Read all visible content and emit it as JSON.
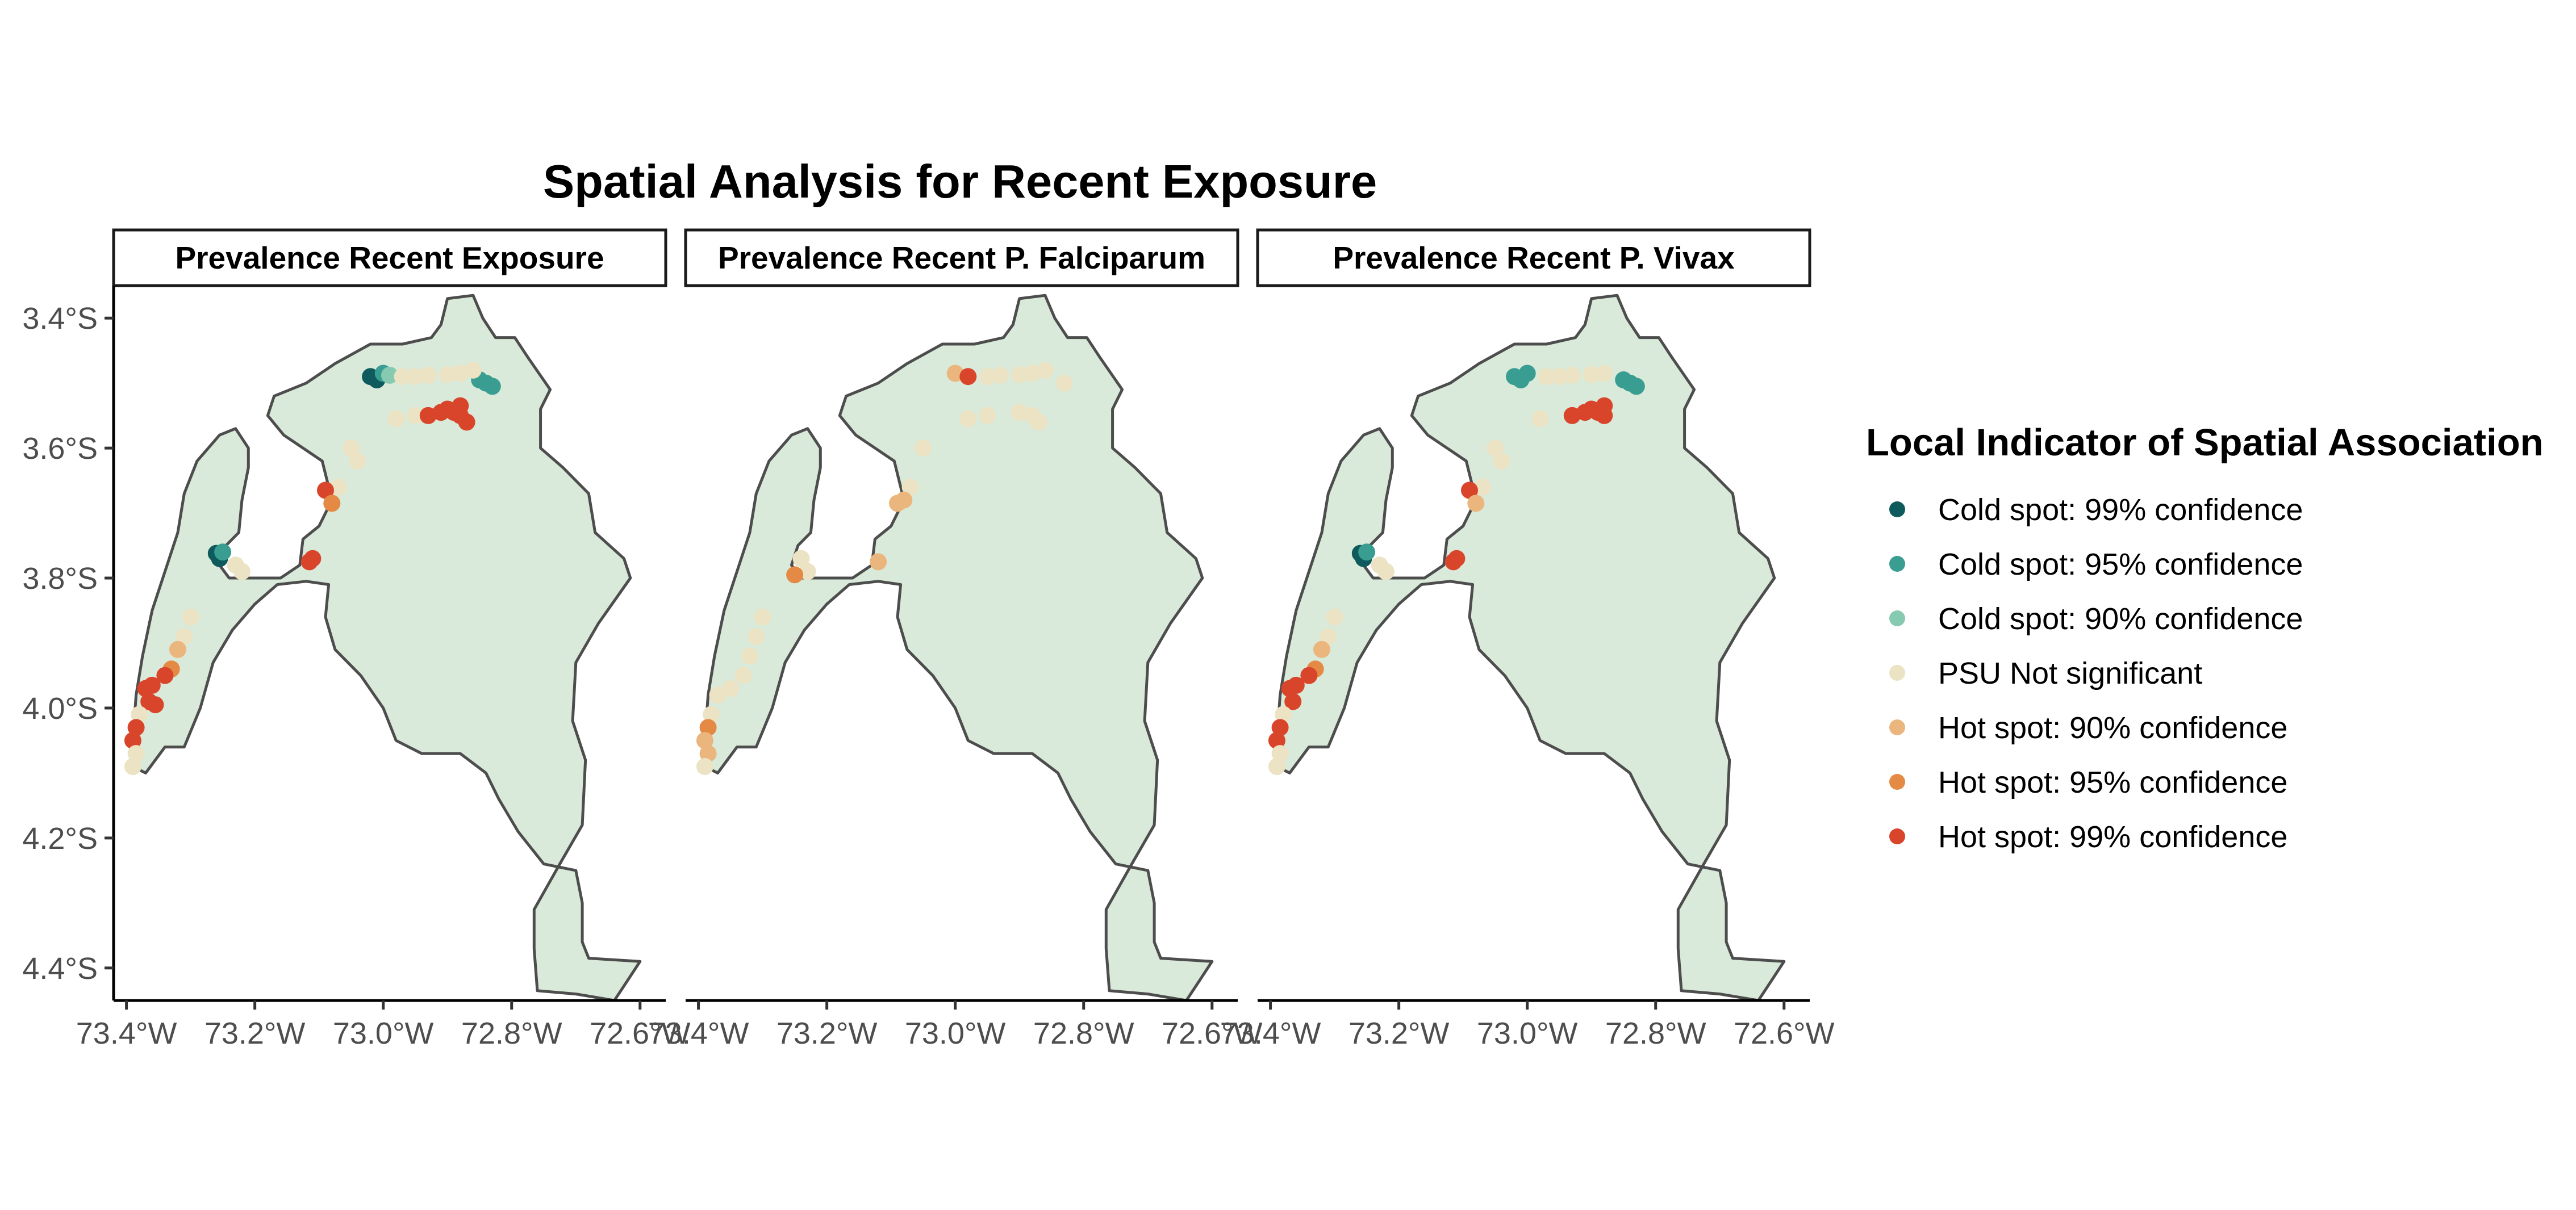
{
  "title": "Spatial Analysis for Recent Exposure",
  "colors": {
    "land": "#d9eada",
    "border": "#4d4d4d",
    "axis": "#000000"
  },
  "panels": [
    {
      "title": "Prevalence Recent Exposure"
    },
    {
      "title": "Prevalence Recent P. Falciparum"
    },
    {
      "title": "Prevalence Recent P. Vivax"
    }
  ],
  "axes": {
    "y_ticks": [
      "3.4°S",
      "3.6°S",
      "3.8°S",
      "4.0°S",
      "4.2°S",
      "4.4°S"
    ],
    "x_ticks": [
      "73.4°W",
      "73.2°W",
      "73.0°W",
      "72.8°W",
      "72.6°W"
    ],
    "x_ticks_clipped": [
      "73.4°W",
      "73.2°W",
      "73.0°W",
      "72.8°W",
      "72.6°W"
    ]
  },
  "legend": {
    "title": "Local Indicator of Spatial Association",
    "items": [
      {
        "label": "Cold spot: 99% confidence",
        "color": "#0e5a5c"
      },
      {
        "label": "Cold spot: 95% confidence",
        "color": "#3a9d92"
      },
      {
        "label": "Cold spot: 90% confidence",
        "color": "#86cbb1"
      },
      {
        "label": "PSU Not significant",
        "color": "#ebe3c4"
      },
      {
        "label": "Hot spot: 90% confidence",
        "color": "#ebb67e"
      },
      {
        "label": "Hot spot: 95% confidence",
        "color": "#e48a44"
      },
      {
        "label": "Hot spot: 99% confidence",
        "color": "#d9452b"
      }
    ]
  },
  "map_data": {
    "lon_range": [
      -73.42,
      -72.56
    ],
    "lat_range": [
      -4.45,
      -3.35
    ],
    "points_by_panel": [
      [
        [
          -73.02,
          -3.49,
          0
        ],
        [
          -73.01,
          -3.495,
          0
        ],
        [
          -73.0,
          -3.485,
          1
        ],
        [
          -72.99,
          -3.488,
          2
        ],
        [
          -72.84,
          -3.5,
          1
        ],
        [
          -72.83,
          -3.505,
          1
        ],
        [
          -72.85,
          -3.495,
          1
        ],
        [
          -72.97,
          -3.49,
          3
        ],
        [
          -72.95,
          -3.49,
          3
        ],
        [
          -72.93,
          -3.488,
          3
        ],
        [
          -72.9,
          -3.487,
          3
        ],
        [
          -72.88,
          -3.485,
          3
        ],
        [
          -72.86,
          -3.48,
          3
        ],
        [
          -72.98,
          -3.555,
          3
        ],
        [
          -72.95,
          -3.55,
          3
        ],
        [
          -73.04,
          -3.62,
          3
        ],
        [
          -73.07,
          -3.66,
          3
        ],
        [
          -73.05,
          -3.6,
          3
        ],
        [
          -72.93,
          -3.55,
          6
        ],
        [
          -72.91,
          -3.545,
          6
        ],
        [
          -72.9,
          -3.54,
          6
        ],
        [
          -72.89,
          -3.545,
          6
        ],
        [
          -72.88,
          -3.55,
          6
        ],
        [
          -72.87,
          -3.56,
          6
        ],
        [
          -72.88,
          -3.535,
          6
        ],
        [
          -73.09,
          -3.665,
          6
        ],
        [
          -73.08,
          -3.685,
          5
        ],
        [
          -73.11,
          -3.77,
          6
        ],
        [
          -73.115,
          -3.775,
          6
        ],
        [
          -73.26,
          -3.762,
          0
        ],
        [
          -73.255,
          -3.77,
          0
        ],
        [
          -73.25,
          -3.76,
          1
        ],
        [
          -73.23,
          -3.78,
          3
        ],
        [
          -73.22,
          -3.79,
          3
        ],
        [
          -73.3,
          -3.86,
          3
        ],
        [
          -73.31,
          -3.89,
          3
        ],
        [
          -73.32,
          -3.91,
          4
        ],
        [
          -73.33,
          -3.94,
          5
        ],
        [
          -73.34,
          -3.95,
          6
        ],
        [
          -73.36,
          -3.965,
          6
        ],
        [
          -73.37,
          -3.97,
          6
        ],
        [
          -73.365,
          -3.99,
          6
        ],
        [
          -73.355,
          -3.995,
          6
        ],
        [
          -73.38,
          -4.01,
          3
        ],
        [
          -73.385,
          -4.03,
          6
        ],
        [
          -73.39,
          -4.05,
          6
        ],
        [
          -73.385,
          -4.07,
          3
        ],
        [
          -73.39,
          -4.09,
          3
        ]
      ],
      [
        [
          -73.0,
          -3.485,
          4
        ],
        [
          -72.98,
          -3.49,
          6
        ],
        [
          -72.95,
          -3.49,
          3
        ],
        [
          -72.93,
          -3.488,
          3
        ],
        [
          -72.9,
          -3.487,
          3
        ],
        [
          -72.88,
          -3.485,
          3
        ],
        [
          -72.86,
          -3.48,
          3
        ],
        [
          -72.83,
          -3.5,
          3
        ],
        [
          -72.98,
          -3.555,
          3
        ],
        [
          -72.95,
          -3.55,
          3
        ],
        [
          -72.9,
          -3.545,
          3
        ],
        [
          -72.88,
          -3.55,
          3
        ],
        [
          -72.87,
          -3.56,
          3
        ],
        [
          -73.05,
          -3.6,
          3
        ],
        [
          -73.07,
          -3.66,
          3
        ],
        [
          -73.08,
          -3.68,
          4
        ],
        [
          -73.09,
          -3.685,
          4
        ],
        [
          -73.12,
          -3.775,
          4
        ],
        [
          -73.24,
          -3.77,
          3
        ],
        [
          -73.23,
          -3.79,
          3
        ],
        [
          -73.25,
          -3.795,
          5
        ],
        [
          -73.3,
          -3.86,
          3
        ],
        [
          -73.31,
          -3.89,
          3
        ],
        [
          -73.32,
          -3.92,
          3
        ],
        [
          -73.33,
          -3.95,
          3
        ],
        [
          -73.35,
          -3.97,
          3
        ],
        [
          -73.37,
          -3.98,
          3
        ],
        [
          -73.38,
          -4.01,
          3
        ],
        [
          -73.385,
          -4.03,
          5
        ],
        [
          -73.39,
          -4.05,
          4
        ],
        [
          -73.385,
          -4.07,
          4
        ],
        [
          -73.39,
          -4.09,
          3
        ]
      ],
      [
        [
          -73.02,
          -3.49,
          1
        ],
        [
          -73.01,
          -3.495,
          1
        ],
        [
          -73.0,
          -3.485,
          1
        ],
        [
          -72.84,
          -3.5,
          1
        ],
        [
          -72.83,
          -3.505,
          1
        ],
        [
          -72.85,
          -3.495,
          1
        ],
        [
          -72.97,
          -3.49,
          3
        ],
        [
          -72.95,
          -3.49,
          3
        ],
        [
          -72.93,
          -3.488,
          3
        ],
        [
          -72.9,
          -3.487,
          3
        ],
        [
          -72.88,
          -3.485,
          3
        ],
        [
          -72.98,
          -3.555,
          3
        ],
        [
          -73.04,
          -3.62,
          3
        ],
        [
          -73.07,
          -3.66,
          3
        ],
        [
          -73.05,
          -3.6,
          3
        ],
        [
          -72.93,
          -3.55,
          6
        ],
        [
          -72.91,
          -3.545,
          6
        ],
        [
          -72.9,
          -3.54,
          6
        ],
        [
          -72.89,
          -3.545,
          6
        ],
        [
          -72.88,
          -3.55,
          6
        ],
        [
          -72.88,
          -3.535,
          6
        ],
        [
          -73.09,
          -3.665,
          6
        ],
        [
          -73.08,
          -3.685,
          4
        ],
        [
          -73.11,
          -3.77,
          6
        ],
        [
          -73.115,
          -3.775,
          6
        ],
        [
          -73.26,
          -3.762,
          0
        ],
        [
          -73.255,
          -3.77,
          0
        ],
        [
          -73.25,
          -3.76,
          1
        ],
        [
          -73.23,
          -3.78,
          3
        ],
        [
          -73.22,
          -3.79,
          3
        ],
        [
          -73.3,
          -3.86,
          3
        ],
        [
          -73.31,
          -3.89,
          3
        ],
        [
          -73.32,
          -3.91,
          4
        ],
        [
          -73.33,
          -3.94,
          5
        ],
        [
          -73.34,
          -3.95,
          6
        ],
        [
          -73.36,
          -3.965,
          6
        ],
        [
          -73.37,
          -3.97,
          6
        ],
        [
          -73.365,
          -3.99,
          6
        ],
        [
          -73.38,
          -4.01,
          3
        ],
        [
          -73.385,
          -4.03,
          6
        ],
        [
          -73.39,
          -4.05,
          6
        ],
        [
          -73.385,
          -4.07,
          3
        ],
        [
          -73.39,
          -4.09,
          3
        ]
      ]
    ]
  }
}
